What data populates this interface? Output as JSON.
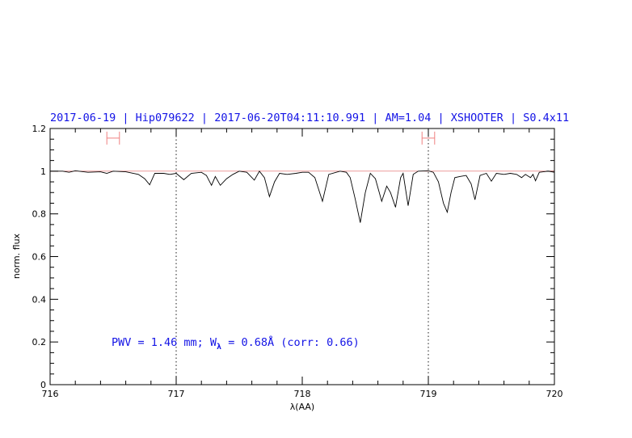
{
  "chart_data": {
    "type": "line",
    "title": "2017-06-19 | Hip079622 | 2017-06-20T04:11:10.991 | AM=1.04 | XSHOOTER | S0.4x11",
    "xlabel": "λ(AA)",
    "ylabel": "norm. flux",
    "xlim": [
      716,
      720
    ],
    "ylim": [
      0,
      1.2
    ],
    "x_ticks": [
      716,
      717,
      718,
      719,
      720
    ],
    "x_tick_labels": [
      "716",
      "717",
      "718",
      "719",
      "720"
    ],
    "y_ticks": [
      0,
      0.2,
      0.4,
      0.6,
      0.8,
      1,
      1.2
    ],
    "y_tick_labels": [
      "0",
      "0.2",
      "0.4",
      "0.6",
      "0.8",
      "1",
      "1.2"
    ],
    "grid": false,
    "reference_line": 1.0,
    "vertical_dotted_lines": [
      717,
      719
    ],
    "interval_markers": [
      {
        "from": 716.45,
        "to": 716.55,
        "y": 1.155
      },
      {
        "from": 718.95,
        "to": 719.05,
        "y": 1.155
      }
    ],
    "annotation": {
      "prefix": "PWV = 1.46 mm; W",
      "subscript": "λ",
      "suffix": " = 0.68Å (corr: 0.66)"
    },
    "series": [
      {
        "x": [
          716.0,
          716.1,
          716.15,
          716.2,
          716.3,
          716.4,
          716.45,
          716.5,
          716.6,
          716.7,
          716.75,
          716.79,
          716.83,
          716.9,
          716.95,
          717.0,
          717.06,
          717.12,
          717.2,
          717.24,
          717.28,
          717.31,
          717.35,
          717.4,
          717.45,
          717.5,
          717.56,
          717.62,
          717.66,
          717.7,
          717.74,
          717.78,
          717.82,
          717.88,
          717.95,
          718.0,
          718.05,
          718.1,
          718.16,
          718.21,
          718.3,
          718.35,
          718.38,
          718.42,
          718.46,
          718.5,
          718.54,
          718.58,
          718.63,
          718.67,
          718.7,
          718.74,
          718.78,
          718.8,
          718.84,
          718.88,
          718.92,
          719.0,
          719.04,
          719.08,
          719.12,
          719.15,
          719.18,
          719.21,
          719.25,
          719.3,
          719.34,
          719.37,
          719.41,
          719.46,
          719.5,
          719.54,
          719.6,
          719.65,
          719.7,
          719.74,
          719.77,
          719.81,
          719.83,
          719.85,
          719.88,
          719.95,
          720.0
        ],
        "y": [
          1.0,
          1.0,
          0.995,
          1.002,
          0.995,
          0.997,
          0.99,
          1.0,
          0.997,
          0.985,
          0.965,
          0.936,
          0.99,
          0.99,
          0.985,
          0.99,
          0.96,
          0.99,
          0.995,
          0.98,
          0.934,
          0.975,
          0.934,
          0.965,
          0.985,
          1.0,
          0.995,
          0.958,
          1.0,
          0.97,
          0.881,
          0.95,
          0.99,
          0.985,
          0.99,
          0.995,
          0.995,
          0.97,
          0.859,
          0.985,
          1.0,
          0.995,
          0.97,
          0.87,
          0.759,
          0.9,
          0.99,
          0.965,
          0.859,
          0.93,
          0.9,
          0.831,
          0.97,
          0.99,
          0.838,
          0.985,
          1.0,
          1.002,
          0.995,
          0.95,
          0.85,
          0.808,
          0.9,
          0.97,
          0.975,
          0.98,
          0.94,
          0.866,
          0.98,
          0.99,
          0.953,
          0.99,
          0.985,
          0.99,
          0.985,
          0.97,
          0.985,
          0.97,
          0.985,
          0.955,
          0.995,
          1.0,
          0.995
        ]
      }
    ],
    "colors": {
      "title": "#1414e6",
      "spectrum": "#000000",
      "reference": "#e06060",
      "markers": "#f08080"
    }
  }
}
